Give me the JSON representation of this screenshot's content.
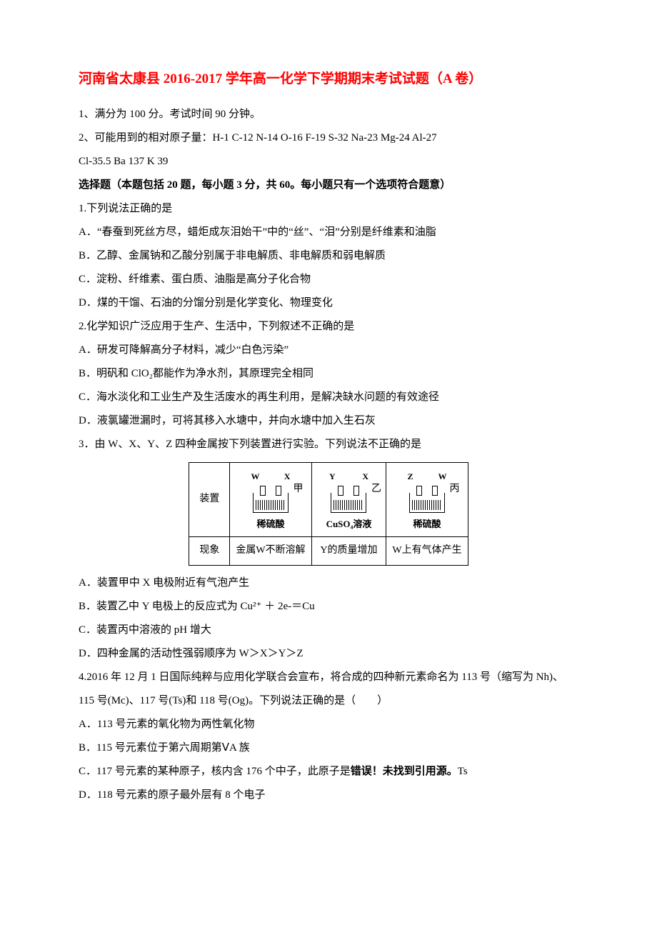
{
  "title": "河南省太康县 2016-2017 学年高一化学下学期期末考试试题（A 卷）",
  "instructions": {
    "line1": "1、满分为 100 分。考试时间 90 分钟。",
    "line2": "2、可能用到的相对原子量：H-1  C-12  N-14 O-16  F-19  S-32  Na-23  Mg-24  Al-27",
    "line3": "Cl-35.5  Ba 137  K 39"
  },
  "section_header": "选择题（本题包括 20 题，每小题 3 分，共 60。每小题只有一个选项符合题意）",
  "q1": {
    "stem": "1.下列说法正确的是",
    "a": "A．“春蚕到死丝方尽，蜡炬成灰泪始干”中的“丝”、“泪”分别是纤维素和油脂",
    "b": "B．乙醇、金属钠和乙酸分别属于非电解质、非电解质和弱电解质",
    "c": "C．淀粉、纤维素、蛋白质、油脂是高分子化合物",
    "d": "D．煤的干馏、石油的分馏分别是化学变化、物理变化"
  },
  "q2": {
    "stem": "2.化学知识广泛应用于生产、生活中，下列叙述不正确的是",
    "a": "A．研发可降解高分子材料，减少“白色污染”",
    "b": "B．明矾和 ClO₂都能作为净水剂，其原理完全相同",
    "c": "C．海水淡化和工业生产及生活废水的再生利用，是解决缺水问题的有效途径",
    "d": "D．液氯罐泄漏时，可将其移入水塘中，并向水塘中加入生石灰"
  },
  "q3": {
    "stem": "3．由 W、X、Y、Z 四种金属按下列装置进行实验。下列说法不正确的是",
    "a": "A．装置甲中 X 电极附近有气泡产生",
    "b": "B．装置乙中 Y 电极上的反应式为 Cu²⁺ ＋ 2e-＝Cu",
    "c": "C．装置丙中溶液的 pH 增大",
    "d": "D．四种金属的活动性强弱顺序为 W＞X＞Y＞Z",
    "table": {
      "row1_label": "装置",
      "row2_label": "现象",
      "cell1": {
        "left": "W",
        "right": "X",
        "side": "甲",
        "solution": "稀硫酸"
      },
      "cell2": {
        "left": "Y",
        "right": "X",
        "side": "乙",
        "solution": "CuSO₄溶液"
      },
      "cell3": {
        "left": "Z",
        "right": "W",
        "side": "丙",
        "solution": "稀硫酸"
      },
      "phenom1": "金属W不断溶解",
      "phenom2": "Y的质量增加",
      "phenom3": "W上有气体产生"
    }
  },
  "q4": {
    "stem": "4.2016 年 12 月 1 日国际纯粹与应用化学联合会宣布，将合成的四种新元素命名为 113 号（缩写为 Nh)、115 号(Mc)、117 号(Ts)和 118 号(Og)。下列说法正确的是（　　）",
    "a": "A．113 号元素的氧化物为两性氧化物",
    "b": "B．115 号元素位于第六周期第ⅤA 族",
    "c_pre": "C．117 号元素的某种原子，核内含 176 个中子，此原子是",
    "c_warn": "错误！未找到引用源。",
    "c_post": "Ts",
    "d": "D．118 号元素的原子最外层有 8 个电子"
  }
}
